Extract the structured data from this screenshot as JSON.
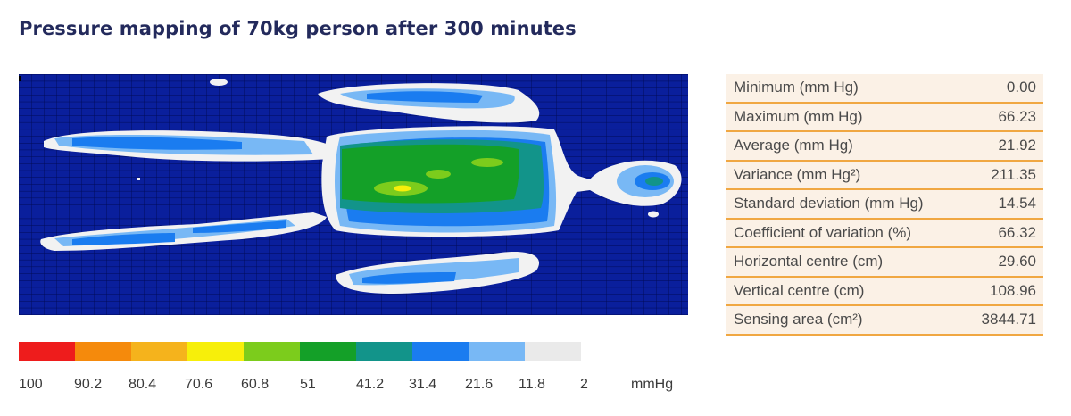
{
  "title": "Pressure mapping of 70kg person after 300 minutes",
  "colors": {
    "background_cell": "#0a1f9c",
    "grid_line": "#000a55",
    "table_bg": "#fbf1e6",
    "table_rule": "#f0a742",
    "title": "#232a5c"
  },
  "stats": [
    {
      "label": "Minimum (mm Hg)",
      "value": "0.00"
    },
    {
      "label": "Maximum (mm Hg)",
      "value": "66.23"
    },
    {
      "label": "Average (mm Hg)",
      "value": "21.92"
    },
    {
      "label": "Variance (mm Hg²)",
      "value": "211.35"
    },
    {
      "label": "Standard deviation (mm Hg)",
      "value": "14.54"
    },
    {
      "label": "Coefficient of variation (%)",
      "value": "66.32"
    },
    {
      "label": "Horizontal centre (cm)",
      "value": "29.60"
    },
    {
      "label": "Vertical centre (cm)",
      "value": "108.96"
    },
    {
      "label": "Sensing area (cm²)",
      "value": "3844.71"
    }
  ],
  "legend": {
    "swatches": [
      "#ee1c1c",
      "#f58a0c",
      "#f5b31c",
      "#f7ef0a",
      "#7ccc1c",
      "#14a028",
      "#12948a",
      "#1a7cf0",
      "#78b8f5",
      "#eaeaea"
    ],
    "labels": [
      "100",
      "90.2",
      "80.4",
      "70.6",
      "60.8",
      "51",
      "41.2",
      "31.4",
      "21.6",
      "11.8",
      "2"
    ],
    "unit": "mmHg"
  }
}
